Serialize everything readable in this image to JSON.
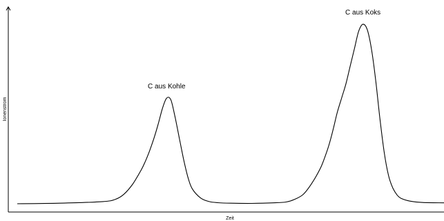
{
  "chart_data": {
    "type": "line",
    "title": "",
    "xlabel": "Zeit",
    "ylabel": "Ionenstrom",
    "grid": false,
    "legend": "none",
    "xlim": [
      0,
      100
    ],
    "ylim": [
      0,
      100
    ],
    "series": [
      {
        "x": [
          0,
          10,
          20,
          23,
          25,
          27,
          29,
          30,
          31,
          32,
          33,
          34,
          35,
          36,
          37,
          38,
          39,
          40,
          41,
          43,
          45,
          47,
          50,
          55,
          60,
          63,
          65,
          67,
          69,
          71,
          72,
          73,
          74,
          75,
          76,
          77,
          78,
          79,
          80,
          81,
          82,
          83,
          84,
          85,
          86,
          87,
          88,
          89,
          90,
          92,
          95,
          100
        ],
        "y": [
          0,
          0.3,
          1.2,
          2.5,
          5.4,
          11,
          19,
          24,
          30,
          37,
          45,
          54,
          60,
          59,
          49,
          37,
          25,
          15,
          8.5,
          3.2,
          1.2,
          0.6,
          0.3,
          0.2,
          0.5,
          1,
          2.5,
          5.3,
          11.5,
          20,
          26,
          33,
          42,
          52,
          60,
          68,
          78,
          88,
          98,
          102,
          99,
          88,
          70,
          48,
          29,
          16,
          9,
          5,
          3,
          1.5,
          0.7,
          0.5
        ]
      }
    ],
    "annotations": [
      {
        "text": "C aus Kohle",
        "x": 35,
        "y": 60
      },
      {
        "text": "C aus Koks",
        "x": 81,
        "y": 102
      }
    ]
  }
}
